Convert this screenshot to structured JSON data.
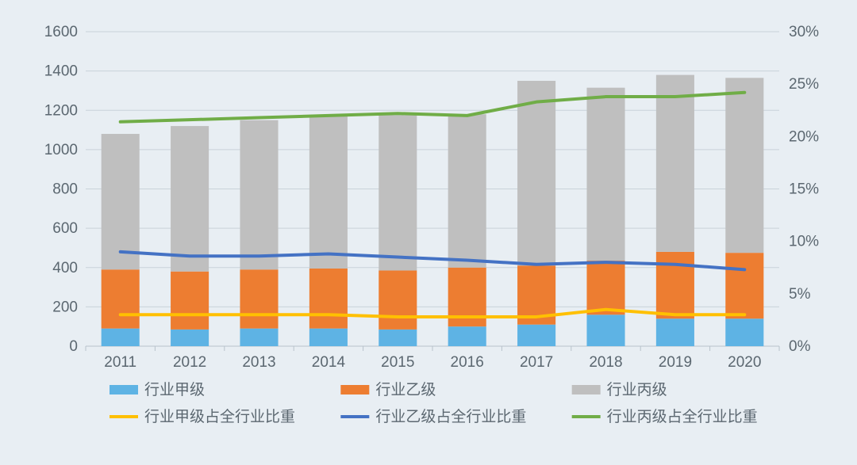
{
  "chart": {
    "type": "stacked-bar-with-lines-dual-axis",
    "background_color": "#e8eef3",
    "plot_border_color": "#b8c2cb",
    "gridline_color": "#c9d2d9",
    "axis_text_color": "#5b6770",
    "axis_font_size": 19,
    "legend_font_size": 19,
    "categories": [
      "2011",
      "2012",
      "2013",
      "2014",
      "2015",
      "2016",
      "2017",
      "2018",
      "2019",
      "2020"
    ],
    "left_axis": {
      "min": 0,
      "max": 1600,
      "tick_step": 200,
      "ticks": [
        "0",
        "200",
        "400",
        "600",
        "800",
        "1000",
        "1200",
        "1400",
        "1600"
      ]
    },
    "right_axis": {
      "min": 0,
      "max": 0.3,
      "tick_step": 0.05,
      "ticks": [
        "0%",
        "5%",
        "10%",
        "15%",
        "20%",
        "25%",
        "30%"
      ]
    },
    "bar_width_ratio": 0.55,
    "bars": [
      {
        "key": "jia",
        "label": "行业甲级",
        "color": "#5eb3e4",
        "values": [
          90,
          85,
          90,
          90,
          85,
          100,
          110,
          160,
          140,
          140
        ]
      },
      {
        "key": "yi",
        "label": "行业乙级",
        "color": "#ed7d31",
        "values": [
          300,
          295,
          300,
          305,
          300,
          300,
          300,
          275,
          340,
          335
        ]
      },
      {
        "key": "bing",
        "label": "行业丙级",
        "color": "#bfbfbf",
        "values": [
          690,
          740,
          760,
          780,
          790,
          780,
          940,
          880,
          900,
          890
        ]
      }
    ],
    "lines": [
      {
        "key": "jia_ratio",
        "label": "行业甲级占全行业比重",
        "color": "#ffc000",
        "values": [
          0.03,
          0.03,
          0.03,
          0.03,
          0.028,
          0.028,
          0.028,
          0.035,
          0.03,
          0.03
        ],
        "line_width": 4
      },
      {
        "key": "yi_ratio",
        "label": "行业乙级占全行业比重",
        "color": "#4472c4",
        "values": [
          0.09,
          0.086,
          0.086,
          0.088,
          0.085,
          0.082,
          0.078,
          0.08,
          0.078,
          0.073
        ],
        "line_width": 4
      },
      {
        "key": "bing_ratio",
        "label": "行业丙级占全行业比重",
        "color": "#70ad47",
        "values": [
          0.214,
          0.216,
          0.218,
          0.22,
          0.222,
          0.22,
          0.233,
          0.238,
          0.238,
          0.242
        ],
        "line_width": 4
      }
    ],
    "legend": {
      "rows": 2,
      "text_color": "#5b6770"
    }
  }
}
